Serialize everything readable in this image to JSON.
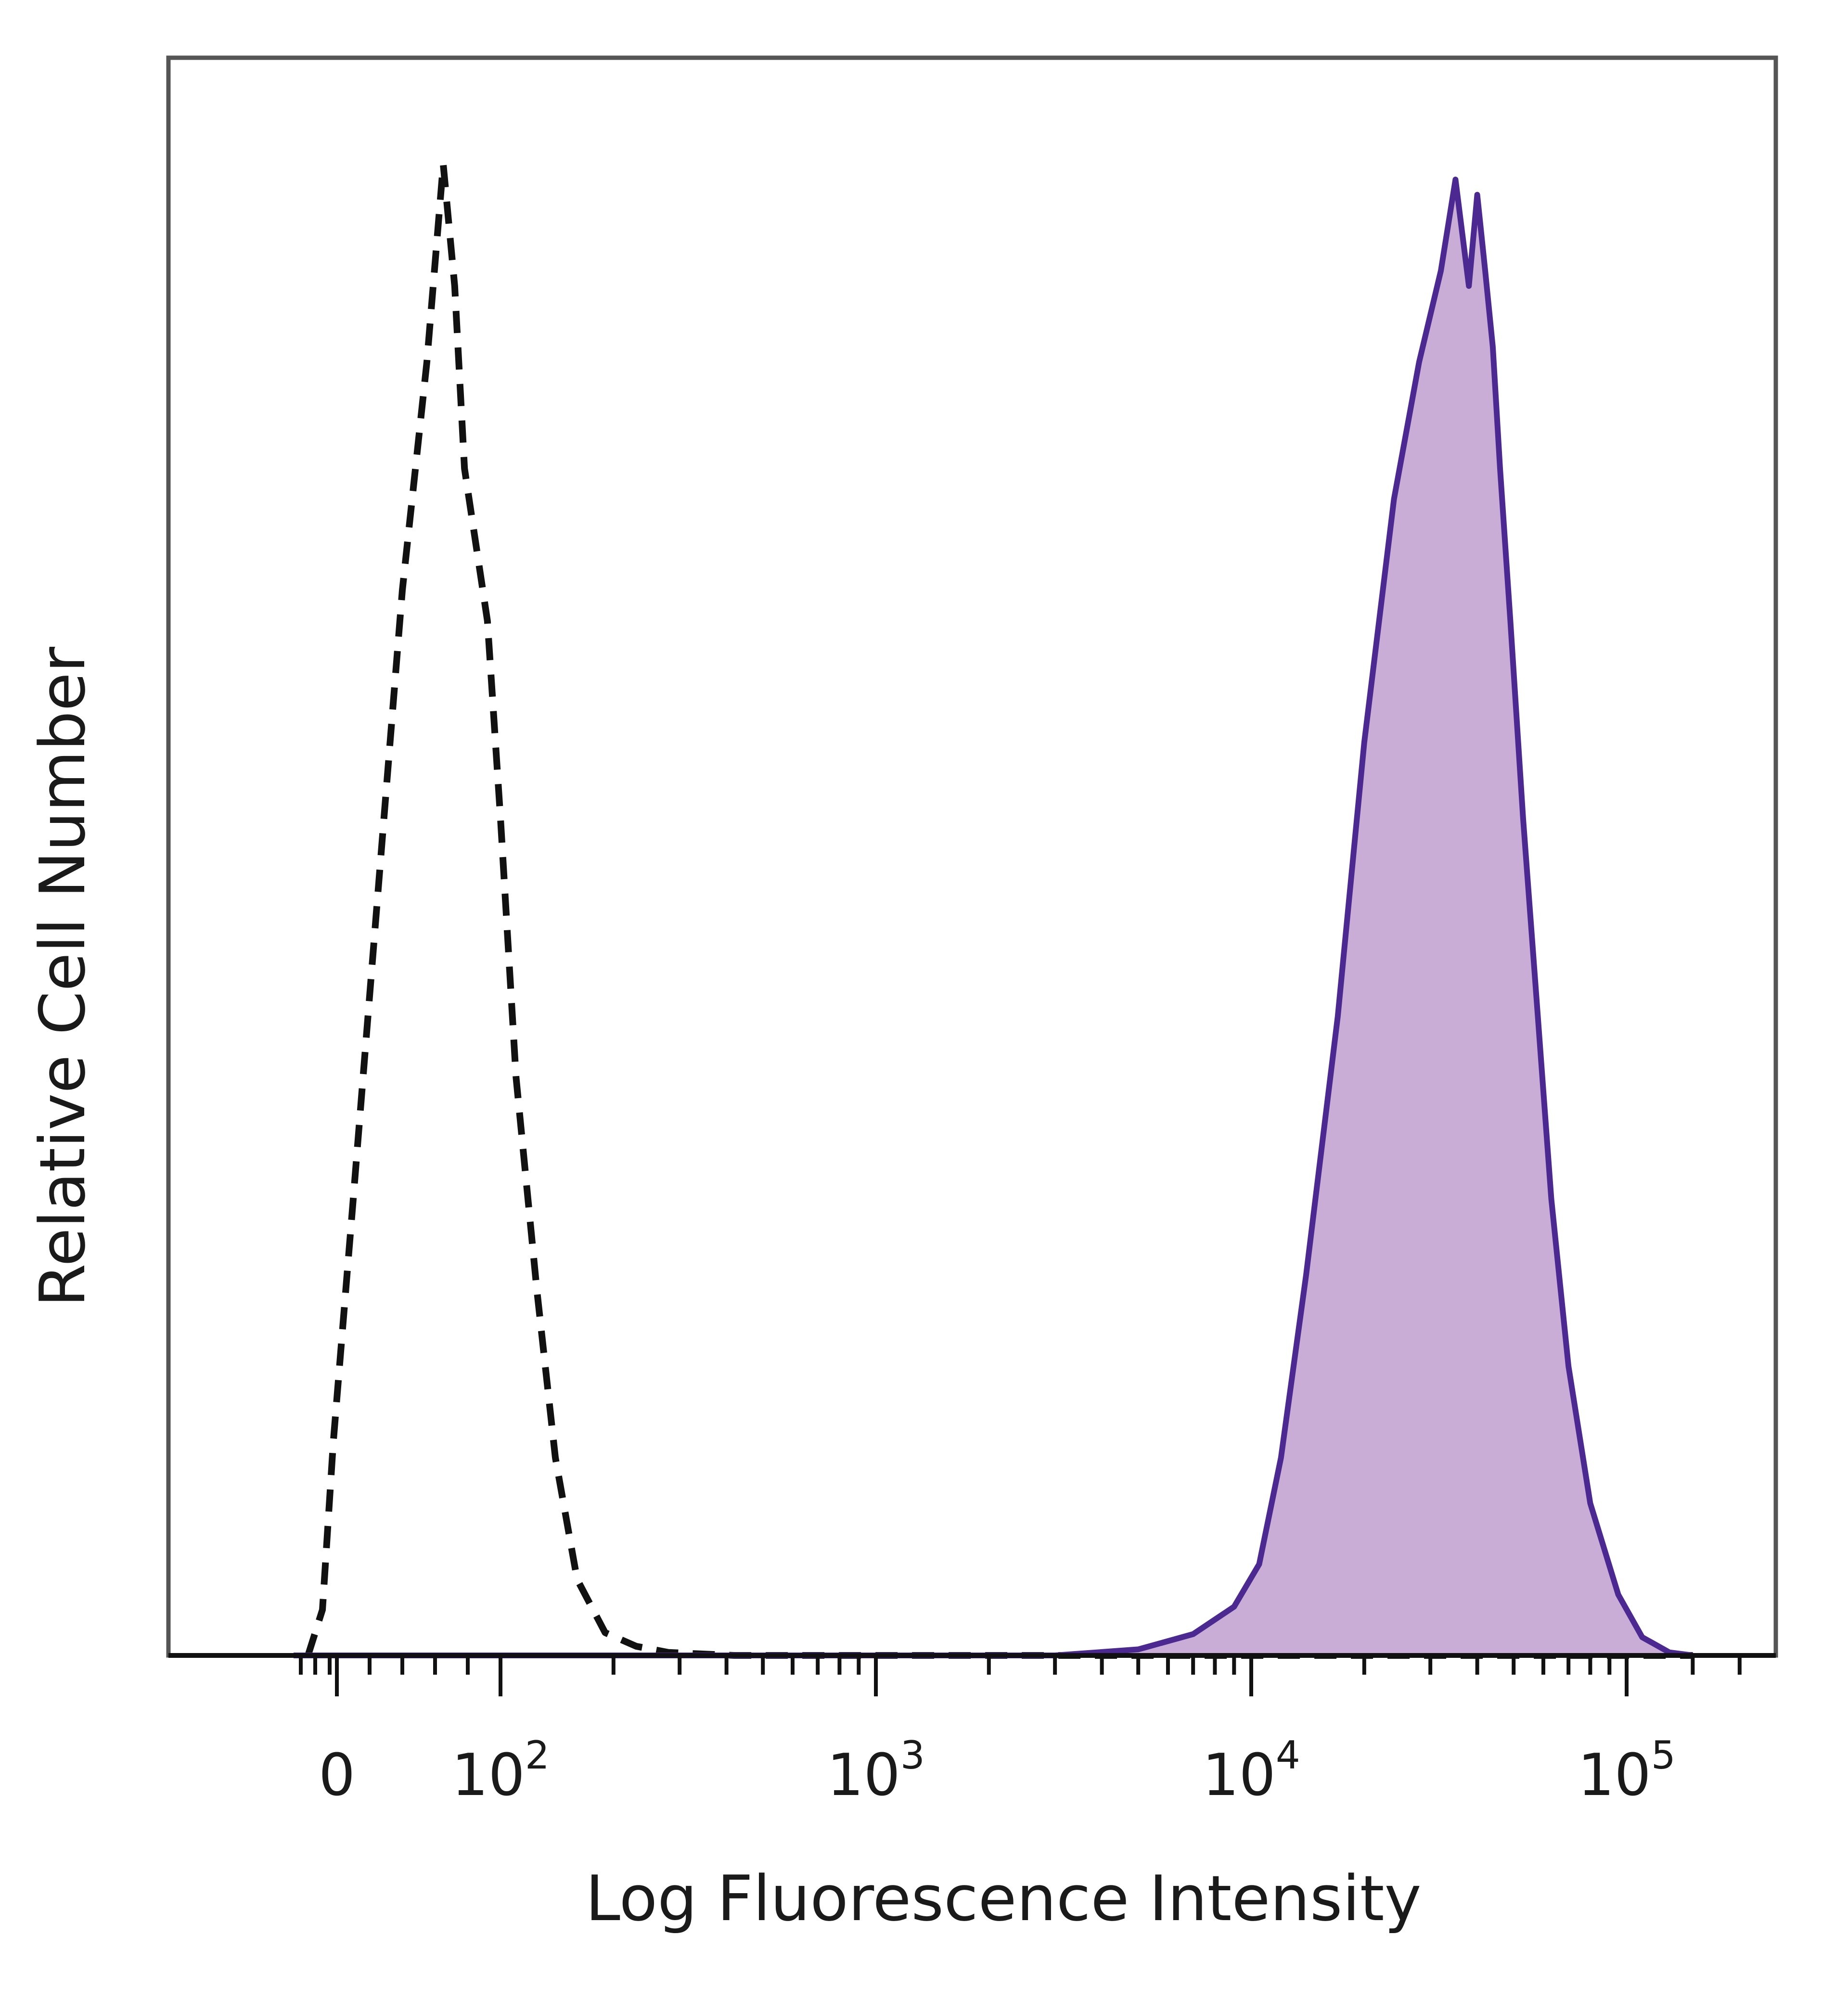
{
  "chart_data": {
    "type": "area",
    "title": "",
    "xlabel": "Log Fluorescence Intensity",
    "ylabel": "Relative Cell Number",
    "x_scale": "biexponential",
    "xlim": [
      -60,
      200000
    ],
    "ylim": [
      0,
      1.05
    ],
    "grid": false,
    "legend": "none",
    "x_ticks": [
      {
        "value": 0,
        "base": "0",
        "exp": ""
      },
      {
        "value": 100,
        "base": "10",
        "exp": "2"
      },
      {
        "value": 1000,
        "base": "10",
        "exp": "3"
      },
      {
        "value": 10000,
        "base": "10",
        "exp": "4"
      },
      {
        "value": 100000,
        "base": "10",
        "exp": "5"
      }
    ],
    "series": [
      {
        "style": "dashed",
        "color": "#111111",
        "fill": "none",
        "x": [
          -40,
          -20,
          -5,
          10,
          25,
          40,
          55,
          65,
          72,
          78,
          85,
          92,
          100,
          110,
          125,
          140,
          160,
          190,
          230,
          280,
          340,
          420,
          600,
          1000,
          3000,
          10000,
          30000,
          80000,
          150000
        ],
        "y": [
          0.0,
          0.03,
          0.14,
          0.3,
          0.5,
          0.7,
          0.85,
          0.98,
          0.9,
          0.78,
          0.73,
          0.68,
          0.55,
          0.38,
          0.24,
          0.13,
          0.05,
          0.015,
          0.006,
          0.002,
          0.001,
          0.0,
          0.0,
          0.0,
          0.0,
          0.0,
          0.0,
          0.0,
          0.0
        ]
      },
      {
        "style": "solid",
        "color": "#4b2991",
        "fill": "#c9add6",
        "x": [
          -60,
          100,
          1000,
          3000,
          5000,
          7000,
          9000,
          10500,
          12000,
          14000,
          17000,
          20000,
          24000,
          28000,
          32000,
          35000,
          38000,
          40000,
          42000,
          44000,
          46000,
          49000,
          53000,
          58000,
          63000,
          70000,
          80000,
          95000,
          110000,
          130000,
          150000
        ],
        "y": [
          0.0,
          0.0,
          0.0,
          0.0,
          0.004,
          0.014,
          0.032,
          0.06,
          0.13,
          0.25,
          0.42,
          0.6,
          0.76,
          0.85,
          0.91,
          0.97,
          0.9,
          0.96,
          0.91,
          0.86,
          0.78,
          0.68,
          0.55,
          0.42,
          0.3,
          0.19,
          0.1,
          0.04,
          0.012,
          0.002,
          0.0
        ]
      }
    ]
  }
}
